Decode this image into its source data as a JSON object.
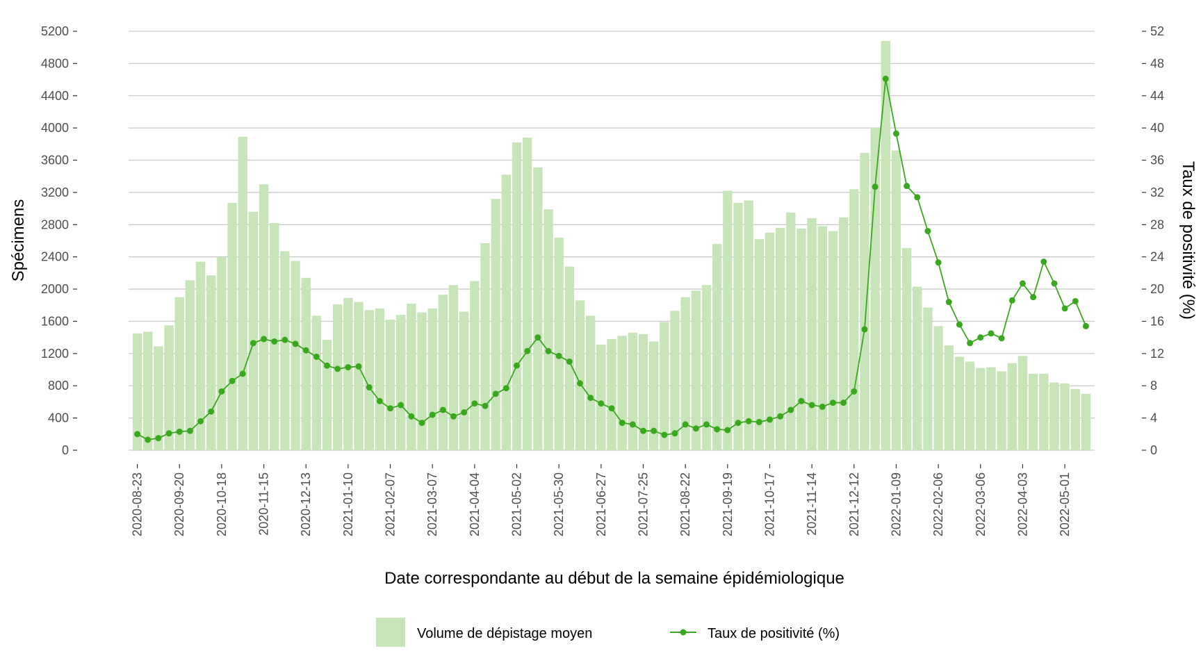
{
  "chart_data": {
    "type": "bar",
    "title": "",
    "xlabel": "Date correspondante au début de la semaine épidémiologique",
    "ylabel": "Spécimens",
    "y2label": "Taux de positivité (%)",
    "ylim": [
      0,
      5200
    ],
    "y2lim": [
      0,
      52
    ],
    "yticks": [
      "0",
      "400",
      "800",
      "1200",
      "1600",
      "2000",
      "2400",
      "2800",
      "3200",
      "3600",
      "4000",
      "4400",
      "4800",
      "5200"
    ],
    "y2ticks": [
      "0",
      "4",
      "8",
      "12",
      "16",
      "20",
      "24",
      "28",
      "32",
      "36",
      "40",
      "44",
      "48",
      "52"
    ],
    "xtick_labels": [
      "2020-08-23",
      "2020-09-20",
      "2020-10-18",
      "2020-11-15",
      "2020-12-13",
      "2021-01-10",
      "2021-02-07",
      "2021-03-07",
      "2021-04-04",
      "2021-05-02",
      "2021-05-30",
      "2021-06-27",
      "2021-07-25",
      "2021-08-22",
      "2021-09-19",
      "2021-10-17",
      "2021-11-14",
      "2021-12-12",
      "2022-01-09",
      "2022-02-06",
      "2022-03-06",
      "2022-04-03",
      "2022-05-01"
    ],
    "xtick_every_weeks": 4,
    "grid": "horizontal",
    "legend_position": "bottom",
    "colors": {
      "bar": "#c8e4b9",
      "line": "#3aa81f",
      "grid": "#cccccc"
    },
    "series": [
      {
        "name": "Volume de dépistage moyen",
        "type": "bar",
        "axis": "left",
        "values": [
          1450,
          1470,
          1290,
          1550,
          1900,
          2110,
          2340,
          2170,
          2400,
          3070,
          3890,
          2960,
          3300,
          2820,
          2470,
          2350,
          2140,
          1670,
          1370,
          1810,
          1890,
          1840,
          1740,
          1760,
          1620,
          1680,
          1820,
          1710,
          1760,
          1930,
          2050,
          1720,
          2100,
          2570,
          3120,
          3420,
          3820,
          3880,
          3510,
          2990,
          2640,
          2280,
          1860,
          1670,
          1310,
          1380,
          1420,
          1460,
          1440,
          1350,
          1590,
          1730,
          1900,
          1980,
          2050,
          2560,
          3220,
          3070,
          3100,
          2620,
          2700,
          2760,
          2950,
          2750,
          2880,
          2780,
          2720,
          2890,
          3240,
          3690,
          4000,
          5080,
          3720,
          2510,
          2030,
          1770,
          1540,
          1300,
          1160,
          1100,
          1020,
          1030,
          980,
          1080,
          1170,
          950,
          950,
          840,
          830,
          760,
          700
        ]
      },
      {
        "name": "Taux de positivité (%)",
        "type": "line",
        "axis": "right",
        "values": [
          2.0,
          1.3,
          1.5,
          2.1,
          2.3,
          2.4,
          3.6,
          4.8,
          7.3,
          8.6,
          9.5,
          13.3,
          13.8,
          13.5,
          13.7,
          13.2,
          12.4,
          11.6,
          10.5,
          10.1,
          10.3,
          10.4,
          7.8,
          6.1,
          5.2,
          5.6,
          4.2,
          3.4,
          4.4,
          5.0,
          4.2,
          4.7,
          5.8,
          5.5,
          7.0,
          7.7,
          10.5,
          12.3,
          14.0,
          12.3,
          11.7,
          11.0,
          8.3,
          6.5,
          5.8,
          5.2,
          3.4,
          3.2,
          2.4,
          2.4,
          1.9,
          2.1,
          3.2,
          2.7,
          3.2,
          2.6,
          2.5,
          3.4,
          3.6,
          3.5,
          3.8,
          4.2,
          5.0,
          6.1,
          5.6,
          5.4,
          5.9,
          5.9,
          7.3,
          15.0,
          32.7,
          46.1,
          39.3,
          32.8,
          31.4,
          27.2,
          23.3,
          18.4,
          15.6,
          13.3,
          14.0,
          14.5,
          13.9,
          18.6,
          20.7,
          19.0,
          23.4,
          20.7,
          17.6,
          18.5,
          15.4
        ]
      }
    ]
  }
}
